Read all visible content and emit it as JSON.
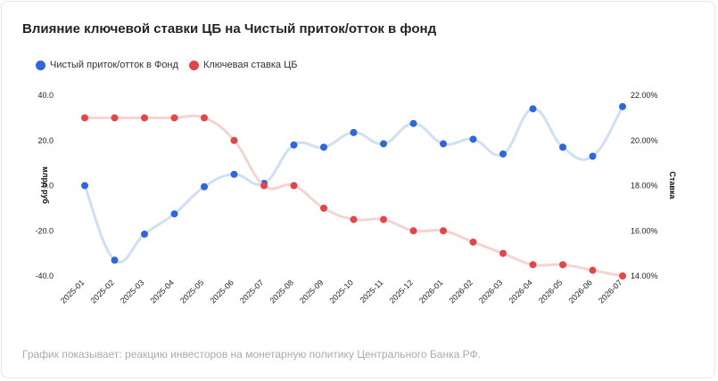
{
  "chart_data": {
    "type": "line",
    "title": "Влияние ключевой ставки ЦБ на Чистый приток/отток в фонд",
    "footnote": "График показывает: реакцию инвесторов на монетарную политику Центрального Банка РФ.",
    "categories": [
      "2025-01",
      "2025-02",
      "2025-03",
      "2025-04",
      "2025-05",
      "2025-06",
      "2025-07",
      "2025-08",
      "2025-09",
      "2025-10",
      "2025-11",
      "2025-12",
      "2026-01",
      "2026-02",
      "2026-03",
      "2026-04",
      "2026-05",
      "2026-06",
      "2026-07"
    ],
    "y_left": {
      "label": "млрд руб",
      "ylim": [
        -40,
        40
      ],
      "ticks": [
        "40.0",
        "20.0",
        "0.0",
        "-20.0",
        "-40.0"
      ]
    },
    "y_right": {
      "label": "Ставка",
      "ylim": [
        14,
        22
      ],
      "ticks": [
        "22.00%",
        "20.00%",
        "18.00%",
        "16.00%",
        "14.00%"
      ]
    },
    "series": [
      {
        "name": "Чистый приток/отток в Фонд",
        "axis": "left",
        "color": "#2f66d9",
        "line_color": "#cfdff4",
        "values": [
          0,
          -33,
          -21.5,
          -12.5,
          -0.5,
          5,
          1,
          18,
          17,
          23.5,
          18.5,
          27.5,
          18.5,
          20.5,
          14,
          34,
          17,
          13,
          35
        ]
      },
      {
        "name": "Ключевая ставка ЦБ",
        "axis": "right",
        "color": "#e04848",
        "line_color": "#f7d2d2",
        "values": [
          21,
          21,
          21,
          21,
          21,
          20,
          18,
          18,
          17,
          16.5,
          16.5,
          16,
          16,
          15.5,
          15,
          14.5,
          14.5,
          14.25,
          14
        ]
      }
    ],
    "grid": false,
    "legend_position": "top-left"
  }
}
